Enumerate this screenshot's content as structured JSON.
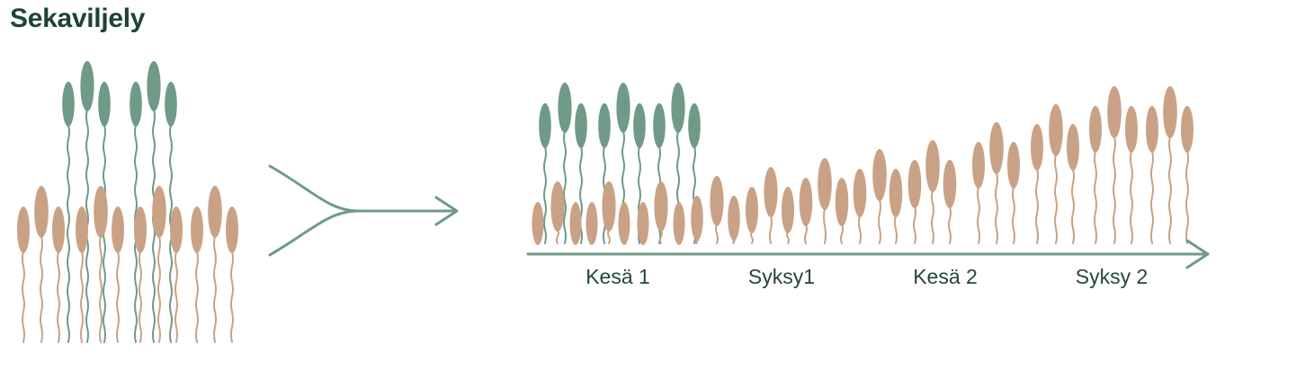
{
  "title": "Sekaviljely",
  "colors": {
    "green": "#6f9a88",
    "tan": "#c9a286",
    "title": "#1e4433",
    "text": "#26453a",
    "arrow": "#6f9a88"
  },
  "left_group": {
    "green_plants": 6,
    "tan_plants": 12
  },
  "timeline": {
    "labels": [
      "Kesä 1",
      "Syksy1",
      "Kesä 2",
      "Syksy 2"
    ]
  }
}
